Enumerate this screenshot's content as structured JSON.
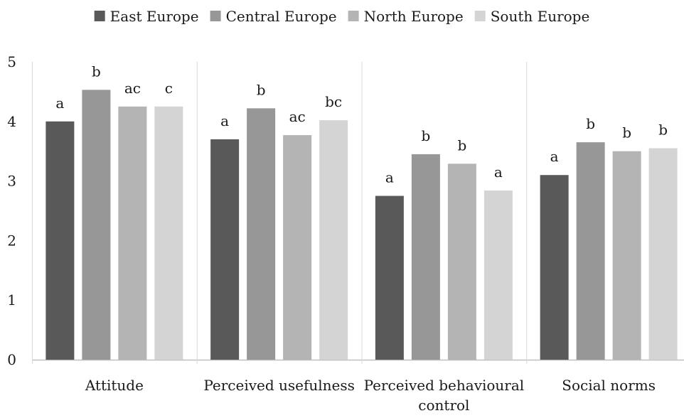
{
  "chart_data": {
    "type": "bar",
    "categories": [
      [
        "Attitude"
      ],
      [
        "Perceived usefulness"
      ],
      [
        "Perceived behavioural",
        "control"
      ],
      [
        "Social norms"
      ]
    ],
    "series": [
      {
        "name": "East Europe",
        "color": "#595959",
        "values": [
          4.0,
          3.7,
          2.75,
          3.1
        ],
        "labels": [
          "a",
          "a",
          "a",
          "a"
        ]
      },
      {
        "name": "Central Europe",
        "color": "#979797",
        "values": [
          4.53,
          4.22,
          3.45,
          3.65
        ],
        "labels": [
          "b",
          "b",
          "b",
          "b"
        ]
      },
      {
        "name": "North Europe",
        "color": "#b4b4b4",
        "values": [
          4.25,
          3.77,
          3.29,
          3.5
        ],
        "labels": [
          "ac",
          "ac",
          "b",
          "b"
        ]
      },
      {
        "name": "South Europe",
        "color": "#d4d4d4",
        "values": [
          4.25,
          4.02,
          2.84,
          3.55
        ],
        "labels": [
          "c",
          "bc",
          "a",
          "b"
        ]
      }
    ],
    "yticks": [
      "0",
      "1",
      "2",
      "3",
      "4",
      "5"
    ],
    "ylim": [
      0,
      5
    ],
    "legend_position": "top",
    "grid": false
  }
}
